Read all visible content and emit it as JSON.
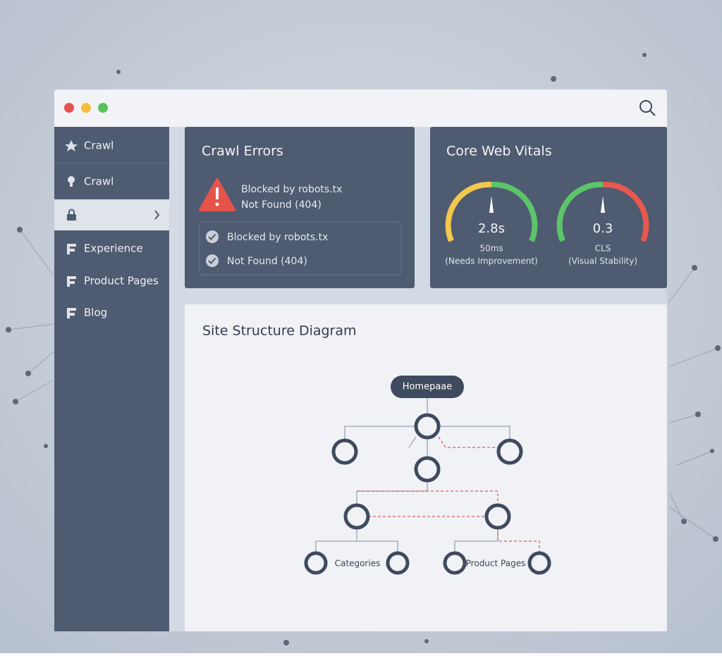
{
  "sidebar": {
    "items": [
      "Crawl",
      "Crawl",
      "Experience",
      "Product Pages",
      "Blog"
    ]
  },
  "crawl_errors": {
    "title": "Crawl Errors",
    "alert_lines": [
      "Blocked by robots.tx",
      "Not Found (404)"
    ],
    "checklist": [
      "Blocked by robots.tx",
      "Not Found (404)"
    ]
  },
  "core_web_vitals": {
    "title": "Core Web Vitals",
    "gauges": [
      {
        "value": "2.8s",
        "label": "50ms",
        "note": "(Needs Improvement)"
      },
      {
        "value": "0.3",
        "label": "CLS",
        "note": "(Visual Stability)"
      }
    ]
  },
  "site_structure": {
    "title": "Site Structure Diagram",
    "root": "Homepaae",
    "labels": [
      "Categories",
      "Product Pages"
    ]
  }
}
